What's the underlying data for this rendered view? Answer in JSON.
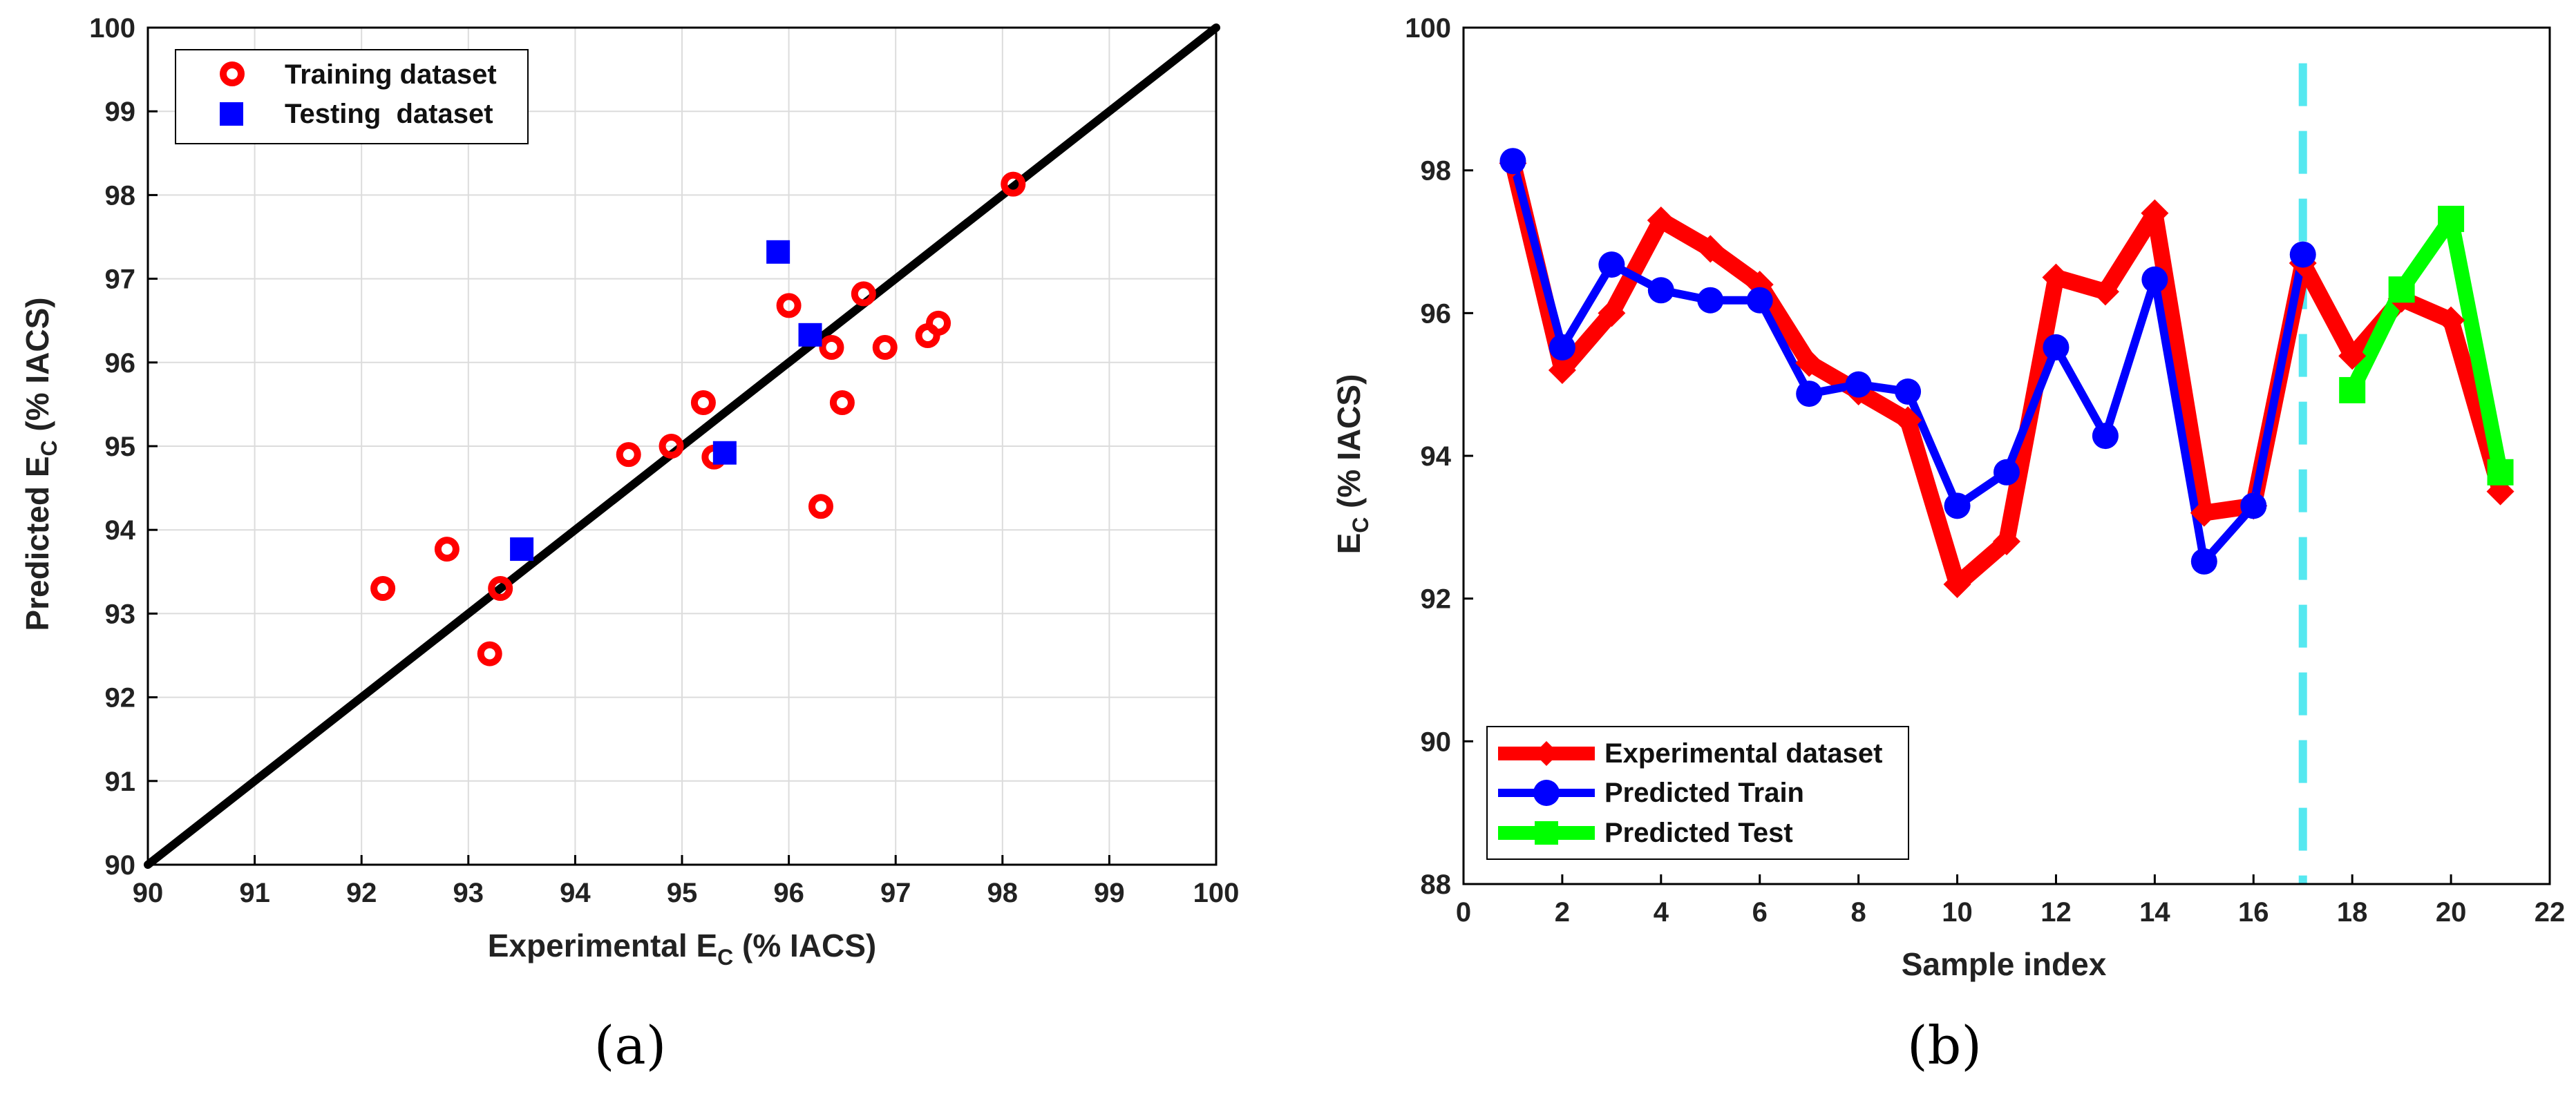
{
  "chart_data": [
    {
      "panel": "a",
      "type": "scatter",
      "caption": "(a)",
      "xlabel": "Experimental E",
      "xlabel_sub": "C",
      "xlabel_suffix": " (% IACS)",
      "ylabel": "Predicted E",
      "ylabel_sub": "C",
      "ylabel_suffix": " (% IACS)",
      "xlim": [
        90,
        100
      ],
      "ylim": [
        90,
        100
      ],
      "xticks": [
        90,
        91,
        92,
        93,
        94,
        95,
        96,
        97,
        98,
        99,
        100
      ],
      "yticks": [
        90,
        91,
        92,
        93,
        94,
        95,
        96,
        97,
        98,
        99,
        100
      ],
      "grid": true,
      "legend_position": "top-left",
      "reference_line": {
        "name": "y = x",
        "from": [
          90,
          90
        ],
        "to": [
          100,
          100
        ],
        "color": "#000000"
      },
      "series": [
        {
          "name": "Training dataset",
          "marker": "circle",
          "color": "#ff0000",
          "points": [
            {
              "x": 92.2,
              "y": 93.3
            },
            {
              "x": 92.8,
              "y": 93.77
            },
            {
              "x": 93.2,
              "y": 92.52
            },
            {
              "x": 93.3,
              "y": 93.3
            },
            {
              "x": 94.5,
              "y": 94.9
            },
            {
              "x": 94.9,
              "y": 95.0
            },
            {
              "x": 95.2,
              "y": 95.52
            },
            {
              "x": 95.3,
              "y": 94.87
            },
            {
              "x": 96.0,
              "y": 96.68
            },
            {
              "x": 96.3,
              "y": 94.28
            },
            {
              "x": 96.4,
              "y": 96.18
            },
            {
              "x": 96.5,
              "y": 95.52
            },
            {
              "x": 96.7,
              "y": 96.82
            },
            {
              "x": 96.9,
              "y": 96.18
            },
            {
              "x": 97.3,
              "y": 96.32
            },
            {
              "x": 97.4,
              "y": 96.47
            },
            {
              "x": 98.1,
              "y": 98.13
            }
          ]
        },
        {
          "name": "Testing  dataset",
          "marker": "square",
          "color": "#0000ff",
          "points": [
            {
              "x": 93.5,
              "y": 93.77
            },
            {
              "x": 95.4,
              "y": 94.92
            },
            {
              "x": 95.9,
              "y": 97.32
            },
            {
              "x": 96.2,
              "y": 96.33
            }
          ]
        }
      ]
    },
    {
      "panel": "b",
      "type": "line",
      "caption": "(b)",
      "xlabel": "Sample index",
      "ylabel": "E",
      "ylabel_sub": "C",
      "ylabel_suffix": " (% IACS)",
      "xlim": [
        0,
        22
      ],
      "ylim": [
        88,
        100
      ],
      "xticks": [
        0,
        2,
        4,
        6,
        8,
        10,
        12,
        14,
        16,
        18,
        20,
        22
      ],
      "yticks": [
        88,
        90,
        92,
        94,
        96,
        98,
        100
      ],
      "grid": false,
      "legend_position": "bottom-left",
      "split_line": {
        "x": 17,
        "color": "#55e8f0",
        "style": "dashed"
      },
      "series": [
        {
          "name": "Experimental dataset",
          "color": "#ff0000",
          "marker": "diamond",
          "x": [
            1,
            2,
            3,
            4,
            5,
            6,
            7,
            8,
            9,
            10,
            11,
            12,
            13,
            14,
            15,
            16,
            17,
            18,
            19,
            20,
            21
          ],
          "y": [
            98.1,
            95.2,
            96.0,
            97.3,
            96.9,
            96.4,
            95.3,
            94.9,
            94.5,
            92.2,
            92.8,
            96.5,
            96.3,
            97.4,
            93.2,
            93.3,
            96.7,
            95.4,
            96.2,
            95.9,
            93.5
          ]
        },
        {
          "name": "Predicted Train",
          "color": "#0000ff",
          "marker": "circle",
          "x": [
            1,
            2,
            3,
            4,
            5,
            6,
            7,
            8,
            9,
            10,
            11,
            12,
            13,
            14,
            15,
            16,
            17
          ],
          "y": [
            98.13,
            95.52,
            96.68,
            96.32,
            96.18,
            96.18,
            94.87,
            95.0,
            94.9,
            93.3,
            93.77,
            95.52,
            94.28,
            96.47,
            92.52,
            93.3,
            96.82
          ]
        },
        {
          "name": "Predicted Test",
          "color": "#00ff00",
          "marker": "square",
          "x": [
            18,
            19,
            20,
            21
          ],
          "y": [
            94.92,
            96.33,
            97.32,
            93.77
          ]
        }
      ]
    }
  ]
}
